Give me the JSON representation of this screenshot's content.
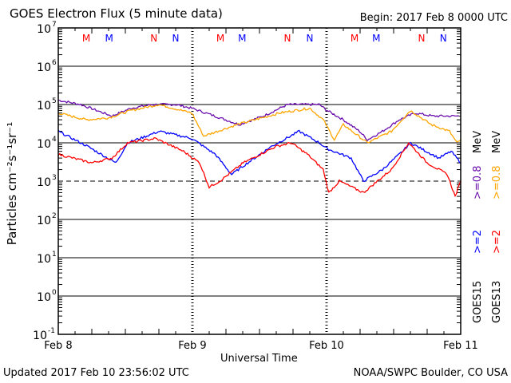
{
  "chart_data": {
    "type": "line",
    "title": "GOES Electron Flux (5 minute data)",
    "begin": "Begin: 2017 Feb 8 0000 UTC",
    "xlabel": "Universal Time",
    "ylabel": "Particles cm⁻²s⁻¹sr⁻¹",
    "y_scale": "log",
    "ylim": [
      0.1,
      10000000
    ],
    "xlim_hours": [
      0,
      72
    ],
    "x_ticks": [
      {
        "h": 0,
        "label": "Feb 8"
      },
      {
        "h": 24,
        "label": "Feb 9"
      },
      {
        "h": 48,
        "label": "Feb 10"
      },
      {
        "h": 72,
        "label": "Feb 11"
      }
    ],
    "y_ticks": [
      {
        "base": "10",
        "exp": "7",
        "v": 10000000.0
      },
      {
        "base": "10",
        "exp": "6",
        "v": 1000000.0
      },
      {
        "base": "10",
        "exp": "5",
        "v": 100000.0
      },
      {
        "base": "10",
        "exp": "4",
        "v": 10000.0
      },
      {
        "base": "10",
        "exp": "3",
        "v": 1000.0
      },
      {
        "base": "10",
        "exp": "2",
        "v": 100.0
      },
      {
        "base": "10",
        "exp": "1",
        "v": 10.0
      },
      {
        "base": "10",
        "exp": "0",
        "v": 1
      },
      {
        "base": "10",
        "exp": "-1",
        "v": 0.1
      }
    ],
    "threshold_line": 1000,
    "markers": [
      {
        "h": 5,
        "label": "M",
        "color": "#ff0000"
      },
      {
        "h": 9.1,
        "label": "M",
        "color": "#0000ff"
      },
      {
        "h": 17.1,
        "label": "N",
        "color": "#ff0000"
      },
      {
        "h": 21,
        "label": "N",
        "color": "#0000ff"
      },
      {
        "h": 29,
        "label": "M",
        "color": "#ff0000"
      },
      {
        "h": 32.9,
        "label": "M",
        "color": "#0000ff"
      },
      {
        "h": 41,
        "label": "N",
        "color": "#ff0000"
      },
      {
        "h": 45,
        "label": "N",
        "color": "#0000ff"
      },
      {
        "h": 53,
        "label": "M",
        "color": "#ff0000"
      },
      {
        "h": 56.9,
        "label": "M",
        "color": "#0000ff"
      },
      {
        "h": 65,
        "label": "N",
        "color": "#ff0000"
      },
      {
        "h": 68.9,
        "label": "N",
        "color": "#0000ff"
      }
    ],
    "series": [
      {
        "name": ">=0.8 MeV",
        "satellite": "GOES15",
        "color": "#6a0dad",
        "points": [
          [
            0,
            130000
          ],
          [
            4,
            100000
          ],
          [
            9.6,
            50000
          ],
          [
            13,
            80000
          ],
          [
            16.7,
            100000
          ],
          [
            21,
            100000
          ],
          [
            23.9,
            80000
          ],
          [
            28,
            50000
          ],
          [
            32.4,
            30000
          ],
          [
            36.7,
            50000
          ],
          [
            41,
            100000
          ],
          [
            46.7,
            100000
          ],
          [
            48.1,
            70000
          ],
          [
            51,
            40000
          ],
          [
            53.9,
            20000
          ],
          [
            55.3,
            12000
          ],
          [
            58,
            20000
          ],
          [
            61,
            40000
          ],
          [
            63.9,
            60000
          ],
          [
            67,
            50000
          ],
          [
            71.7,
            50000
          ]
        ]
      },
      {
        "name": ">=0.8 MeV",
        "satellite": "GOES13",
        "color": "#ffa500",
        "points": [
          [
            0,
            60000
          ],
          [
            5,
            40000
          ],
          [
            9,
            45000
          ],
          [
            13,
            70000
          ],
          [
            18,
            100000
          ],
          [
            23.9,
            60000
          ],
          [
            26,
            15000
          ],
          [
            32,
            30000
          ],
          [
            39.6,
            60000
          ],
          [
            45,
            80000
          ],
          [
            47.4,
            40000
          ],
          [
            49.4,
            12000
          ],
          [
            51,
            30000
          ],
          [
            55.3,
            10000
          ],
          [
            59.6,
            20000
          ],
          [
            63,
            70000
          ],
          [
            66.7,
            30000
          ],
          [
            70,
            20000
          ],
          [
            71.3,
            10000
          ],
          [
            72,
            12000
          ]
        ]
      },
      {
        "name": ">=2 MeV",
        "satellite": "GOES15",
        "color": "#0000ff",
        "points": [
          [
            0,
            20000
          ],
          [
            5.3,
            8000
          ],
          [
            10.3,
            3000
          ],
          [
            12.4,
            10000
          ],
          [
            18.1,
            20000
          ],
          [
            23.9,
            13000
          ],
          [
            28.1,
            5000
          ],
          [
            31,
            1500
          ],
          [
            33.9,
            3000
          ],
          [
            38.1,
            8000
          ],
          [
            43.1,
            20000
          ],
          [
            46.7,
            10000
          ],
          [
            48.1,
            7000
          ],
          [
            52.4,
            4000
          ],
          [
            54.6,
            1000
          ],
          [
            58,
            2000
          ],
          [
            61.6,
            6000
          ],
          [
            63,
            10000
          ],
          [
            68.1,
            4000
          ],
          [
            70.3,
            6000
          ],
          [
            72,
            3000
          ]
        ]
      },
      {
        "name": ">=2 MeV",
        "satellite": "GOES13",
        "color": "#ff0000",
        "points": [
          [
            0,
            5000
          ],
          [
            6,
            3000
          ],
          [
            9.6,
            4000
          ],
          [
            12.4,
            10000
          ],
          [
            17.4,
            13000
          ],
          [
            22.4,
            6000
          ],
          [
            25.3,
            3000
          ],
          [
            27,
            700
          ],
          [
            28.9,
            1000
          ],
          [
            33.1,
            3000
          ],
          [
            38.9,
            8000
          ],
          [
            41.7,
            10000
          ],
          [
            44.6,
            5000
          ],
          [
            47.4,
            2000
          ],
          [
            48.4,
            500
          ],
          [
            50.3,
            1000
          ],
          [
            54.6,
            500
          ],
          [
            59.6,
            2000
          ],
          [
            62.7,
            10000
          ],
          [
            66,
            3000
          ],
          [
            69.6,
            1500
          ],
          [
            71,
            400
          ],
          [
            72,
            1000
          ]
        ]
      }
    ],
    "legend": {
      "goes15": "GOES15",
      "goes13": "GOES13",
      "gt2": ">=2",
      "gt08": ">=0.8",
      "mev": "MeV"
    }
  },
  "footer": {
    "updated": "Updated 2017 Feb 10 23:56:02 UTC",
    "credit": "NOAA/SWPC Boulder, CO USA"
  }
}
